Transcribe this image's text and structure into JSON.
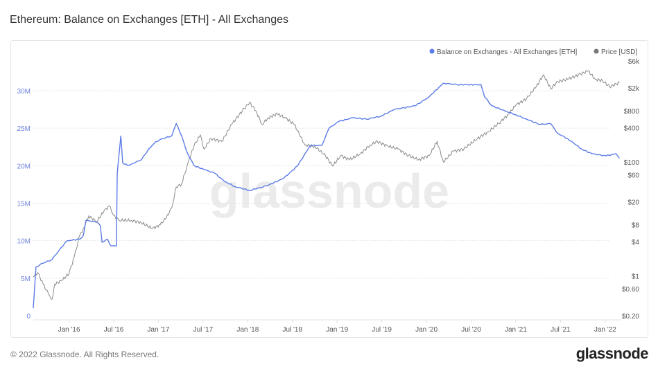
{
  "title": "Ethereum: Balance on Exchanges [ETH] - All Exchanges",
  "footer": "© 2022 Glassnode. All Rights Reserved.",
  "logo": "glassnode",
  "watermark": "glassnode",
  "colors": {
    "balance": "#5b7be8",
    "price": "#8a8a8a",
    "left_axis": "#6b80dd"
  },
  "chart_data": {
    "type": "line",
    "title": "Ethereum: Balance on Exchanges [ETH] - All Exchanges",
    "legend": [
      "Balance on Exchanges - All Exchanges [ETH]",
      "Price [USD]"
    ],
    "legend_position": "top-right",
    "x_ticks": [
      {
        "t": 2016.0,
        "label": "Jan '16"
      },
      {
        "t": 2016.5,
        "label": "Jul '16"
      },
      {
        "t": 2017.0,
        "label": "Jan '17"
      },
      {
        "t": 2017.5,
        "label": "Jul '17"
      },
      {
        "t": 2018.0,
        "label": "Jan '18"
      },
      {
        "t": 2018.5,
        "label": "Jul '18"
      },
      {
        "t": 2019.0,
        "label": "Jan '19"
      },
      {
        "t": 2019.5,
        "label": "Jul '19"
      },
      {
        "t": 2020.0,
        "label": "Jan '20"
      },
      {
        "t": 2020.5,
        "label": "Jul '20"
      },
      {
        "t": 2021.0,
        "label": "Jan '21"
      },
      {
        "t": 2021.5,
        "label": "Jul '21"
      },
      {
        "t": 2022.0,
        "label": "Jan '22"
      }
    ],
    "xlim": [
      2015.6,
      2022.18
    ],
    "left_axis": {
      "ylim": [
        0,
        30
      ],
      "unit": "M ETH",
      "ticks": [
        {
          "v": 0,
          "label": "0"
        },
        {
          "v": 5,
          "label": "5M"
        },
        {
          "v": 10,
          "label": "10M"
        },
        {
          "v": 15,
          "label": "15M"
        },
        {
          "v": 20,
          "label": "20M"
        },
        {
          "v": 25,
          "label": "25M"
        },
        {
          "v": 30,
          "label": "30M"
        }
      ]
    },
    "right_axis": {
      "scale": "log",
      "ylim": [
        0.2,
        6000
      ],
      "ticks": [
        {
          "v": 6000,
          "label": "$6k"
        },
        {
          "v": 2000,
          "label": "$2k"
        },
        {
          "v": 800,
          "label": "$800"
        },
        {
          "v": 400,
          "label": "$400"
        },
        {
          "v": 100,
          "label": "$100"
        },
        {
          "v": 60,
          "label": "$60"
        },
        {
          "v": 20,
          "label": "$20"
        },
        {
          "v": 8,
          "label": "$8"
        },
        {
          "v": 4,
          "label": "$4"
        },
        {
          "v": 1,
          "label": "$1"
        },
        {
          "v": 0.6,
          "label": "$0.60"
        },
        {
          "v": 0.2,
          "label": "$0.20"
        }
      ]
    },
    "series": [
      {
        "name": "Balance on Exchanges - All Exchanges [ETH]",
        "axis": "left",
        "unit": "M",
        "t": [
          2015.6,
          2015.63,
          2015.71,
          2015.81,
          2015.96,
          2015.98,
          2016.12,
          2016.16,
          2016.19,
          2016.31,
          2016.35,
          2016.37,
          2016.43,
          2016.47,
          2016.53,
          2016.54,
          2016.58,
          2016.6,
          2016.66,
          2016.74,
          2016.81,
          2016.89,
          2016.97,
          2017.05,
          2017.15,
          2017.2,
          2017.26,
          2017.32,
          2017.4,
          2017.51,
          2017.63,
          2017.74,
          2017.86,
          2018.02,
          2018.21,
          2018.4,
          2018.56,
          2018.64,
          2018.7,
          2018.83,
          2018.91,
          2019.02,
          2019.18,
          2019.33,
          2019.49,
          2019.64,
          2019.88,
          2020.03,
          2020.19,
          2020.34,
          2020.61,
          2020.65,
          2020.73,
          2020.88,
          2021.0,
          2021.12,
          2021.27,
          2021.39,
          2021.47,
          2021.58,
          2021.74,
          2021.85,
          2022.01,
          2022.12,
          2022.16
        ],
        "values": [
          1.0,
          6.5,
          7.0,
          7.5,
          9.8,
          10.0,
          10.2,
          10.7,
          12.7,
          12.5,
          12.0,
          9.8,
          10.2,
          9.3,
          9.3,
          19.0,
          24.0,
          20.4,
          20.0,
          20.4,
          20.8,
          22.2,
          23.2,
          23.6,
          24.0,
          25.6,
          24.0,
          21.8,
          20.0,
          19.5,
          19.0,
          17.9,
          17.2,
          16.7,
          17.3,
          18.3,
          20.0,
          21.6,
          22.7,
          22.7,
          25.0,
          25.9,
          26.4,
          26.2,
          26.6,
          27.5,
          28.0,
          29.2,
          31.0,
          30.8,
          30.8,
          29.2,
          28.0,
          27.3,
          26.8,
          26.2,
          25.5,
          25.6,
          24.3,
          23.6,
          22.2,
          21.6,
          21.3,
          21.6,
          21.0
        ]
      },
      {
        "name": "Price [USD]",
        "axis": "right",
        "t": [
          2015.6,
          2015.65,
          2015.71,
          2015.77,
          2015.81,
          2015.84,
          2015.92,
          2016.0,
          2016.06,
          2016.12,
          2016.16,
          2016.22,
          2016.31,
          2016.39,
          2016.45,
          2016.5,
          2016.56,
          2016.7,
          2016.81,
          2016.93,
          2017.02,
          2017.09,
          2017.15,
          2017.2,
          2017.26,
          2017.32,
          2017.4,
          2017.47,
          2017.51,
          2017.59,
          2017.71,
          2017.82,
          2017.94,
          2018.02,
          2018.09,
          2018.16,
          2018.23,
          2018.33,
          2018.42,
          2018.52,
          2018.64,
          2018.75,
          2018.87,
          2018.95,
          2019.04,
          2019.14,
          2019.26,
          2019.37,
          2019.45,
          2019.57,
          2019.68,
          2019.8,
          2019.91,
          2020.03,
          2020.12,
          2020.19,
          2020.3,
          2020.42,
          2020.57,
          2020.69,
          2020.81,
          2020.92,
          2021.0,
          2021.12,
          2021.23,
          2021.31,
          2021.39,
          2021.47,
          2021.58,
          2021.7,
          2021.81,
          2021.89,
          2021.97,
          2022.05,
          2022.16
        ],
        "values": [
          0.96,
          1.15,
          0.72,
          0.48,
          0.39,
          0.72,
          0.83,
          1.1,
          2.2,
          5.2,
          6.8,
          11.3,
          9.0,
          13.7,
          17,
          11.6,
          9.5,
          9.5,
          8.6,
          6.8,
          7.9,
          10.7,
          15.8,
          36.6,
          41,
          85,
          197,
          299,
          170,
          260,
          230,
          460,
          798,
          1117,
          800,
          460,
          600,
          700,
          600,
          460,
          200,
          190,
          130,
          85,
          130,
          110,
          140,
          200,
          230,
          190,
          170,
          130,
          110,
          130,
          230,
          100,
          155,
          170,
          260,
          340,
          480,
          700,
          1000,
          1300,
          2130,
          3430,
          1950,
          2600,
          2850,
          3400,
          4000,
          2850,
          2700,
          2100,
          2500
        ]
      }
    ]
  }
}
